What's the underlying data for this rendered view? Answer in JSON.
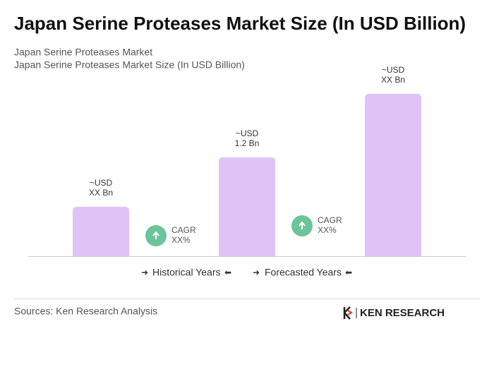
{
  "chart_data": {
    "type": "bar",
    "title": "Japan Serine Proteases Market Size (In USD Billion)",
    "subtitle": [
      "Japan Serine Proteases Market",
      "Japan Serine Proteases Market Size (In USD Billion)"
    ],
    "categories": [
      null,
      null,
      null
    ],
    "values": [
      0.6,
      1.2,
      1.97
    ],
    "value_labels": [
      [
        "~USD",
        "XX Bn"
      ],
      [
        "~USD",
        "1.2 Bn"
      ],
      [
        "~USD",
        "XX Bn"
      ]
    ],
    "color": "#dfc3f7",
    "annotations": [
      [
        "CAGR",
        "XX%"
      ],
      [
        "CAGR",
        "XX%"
      ]
    ],
    "periods": [
      "Historical Years",
      "Forecasted Years"
    ],
    "source": "Sources: Ken Research Analysis",
    "brand": "KEN RESEARCH"
  }
}
